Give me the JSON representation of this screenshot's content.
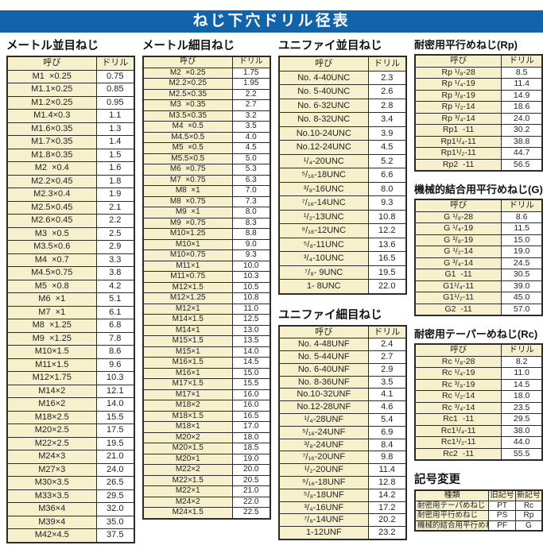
{
  "title": "ねじ下穴ドリル径表",
  "colors": {
    "header_bar": "#1164aa",
    "cell_cream": "#f6f0cd",
    "border": "#2b2b2b",
    "text": "#222222"
  },
  "col_headers": {
    "name": "呼び",
    "drill": "ドリル"
  },
  "tables": {
    "metric_coarse": {
      "title": "メートル並目ねじ",
      "rows": [
        [
          "M1  ×0.25",
          "0.75"
        ],
        [
          "M1.1×0.25",
          "0.85"
        ],
        [
          "M1.2×0.25",
          "0.95"
        ],
        [
          "M1.4×0.3",
          "1.1"
        ],
        [
          "M1.6×0.35",
          "1.3"
        ],
        [
          "M1.7×0.35",
          "1.4"
        ],
        [
          "M1.8×0.35",
          "1.5"
        ],
        [
          "M2  ×0.4",
          "1.6"
        ],
        [
          "M2.2×0.45",
          "1.8"
        ],
        [
          "M2.3×0.4",
          "1.9"
        ],
        [
          "M2.5×0.45",
          "2.1"
        ],
        [
          "M2.6×0.45",
          "2.2"
        ],
        [
          "M3  ×0.5",
          "2.5"
        ],
        [
          "M3.5×0.6",
          "2.9"
        ],
        [
          "M4  ×0.7",
          "3.3"
        ],
        [
          "M4.5×0.75",
          "3.8"
        ],
        [
          "M5  ×0.8",
          "4.2"
        ],
        [
          "M6  ×1",
          "5.1"
        ],
        [
          "M7  ×1",
          "6.1"
        ],
        [
          "M8  ×1.25",
          "6.8"
        ],
        [
          "M9  ×1.25",
          "7.8"
        ],
        [
          "M10×1.5",
          "8.6"
        ],
        [
          "M11×1.5",
          "9.6"
        ],
        [
          "M12×1.75",
          "10.3"
        ],
        [
          "M14×2",
          "12.1"
        ],
        [
          "M16×2",
          "14.0"
        ],
        [
          "M18×2.5",
          "15.5"
        ],
        [
          "M20×2.5",
          "17.5"
        ],
        [
          "M22×2.5",
          "19.5"
        ],
        [
          "M24×3",
          "21.0"
        ],
        [
          "M27×3",
          "24.0"
        ],
        [
          "M30×3.5",
          "26.5"
        ],
        [
          "M33×3.5",
          "29.5"
        ],
        [
          "M36×4",
          "32.0"
        ],
        [
          "M39×4",
          "35.0"
        ],
        [
          "M42×4.5",
          "37.5"
        ]
      ]
    },
    "metric_fine": {
      "title": "メートル細目ねじ",
      "rows": [
        [
          "M2  ×0.25",
          "1.75"
        ],
        [
          "M2.2×0.25",
          "1.95"
        ],
        [
          "M2.5×0.35",
          "2.2"
        ],
        [
          "M3  ×0.35",
          "2.7"
        ],
        [
          "M3.5×0.35",
          "3.2"
        ],
        [
          "M4  ×0.5",
          "3.5"
        ],
        [
          "M4.5×0.5",
          "4.0"
        ],
        [
          "M5  ×0.5",
          "4.5"
        ],
        [
          "M5.5×0.5",
          "5.0"
        ],
        [
          "M6  ×0.75",
          "5.3"
        ],
        [
          "M7  ×0.75",
          "6.3"
        ],
        [
          "M8  ×1",
          "7.0"
        ],
        [
          "M8  ×0.75",
          "7.3"
        ],
        [
          "M9  ×1",
          "8.0"
        ],
        [
          "M9  ×0.75",
          "8.3"
        ],
        [
          "M10×1.25",
          "8.8"
        ],
        [
          "M10×1",
          "9.0"
        ],
        [
          "M10×0.75",
          "9.3"
        ],
        [
          "M11×1",
          "10.0"
        ],
        [
          "M11×0.75",
          "10.3"
        ],
        [
          "M12×1.5",
          "10.5"
        ],
        [
          "M12×1.25",
          "10.8"
        ],
        [
          "M12×1",
          "11.0"
        ],
        [
          "M14×1.5",
          "12.5"
        ],
        [
          "M14×1",
          "13.0"
        ],
        [
          "M15×1.5",
          "13.5"
        ],
        [
          "M15×1",
          "14.0"
        ],
        [
          "M16×1.5",
          "14.5"
        ],
        [
          "M16×1",
          "15.0"
        ],
        [
          "M17×1.5",
          "15.5"
        ],
        [
          "M17×1",
          "16.0"
        ],
        [
          "M18×2",
          "16.0"
        ],
        [
          "M18×1.5",
          "16.5"
        ],
        [
          "M18×1",
          "17.0"
        ],
        [
          "M20×2",
          "18.0"
        ],
        [
          "M20×1.5",
          "18.5"
        ],
        [
          "M20×1",
          "19.0"
        ],
        [
          "M22×2",
          "20.0"
        ],
        [
          "M22×1.5",
          "20.5"
        ],
        [
          "M22×1",
          "21.0"
        ],
        [
          "M24×2",
          "22.0"
        ],
        [
          "M24×1.5",
          "22.5"
        ]
      ]
    },
    "unified_coarse": {
      "title": "ユニファイ並目ねじ",
      "rows": [
        [
          "No. 4-40UNC",
          "2.3"
        ],
        [
          "No. 5-40UNC",
          "2.6"
        ],
        [
          "No. 6-32UNC",
          "2.8"
        ],
        [
          "No. 8-32UNC",
          "3.4"
        ],
        [
          "No.10-24UNC",
          "3.9"
        ],
        [
          "No.12-24UNC",
          "4.5"
        ],
        [
          "¹/₄-20UNC",
          "5.2"
        ],
        [
          "⁵/₁₆-18UNC",
          "6.6"
        ],
        [
          "³/₈-16UNC",
          "8.0"
        ],
        [
          "⁷/₁₆-14UNC",
          "9.3"
        ],
        [
          "¹/₂-13UNC",
          "10.8"
        ],
        [
          "⁹/₁₆-12UNC",
          "12.2"
        ],
        [
          "⁵/₈-11UNC",
          "13.6"
        ],
        [
          "³/₄-10UNC",
          "16.5"
        ],
        [
          "⁷/₈- 9UNC",
          "19.5"
        ],
        [
          "1- 8UNC",
          "22.0"
        ]
      ]
    },
    "unified_fine": {
      "title": "ユニファイ細目ねじ",
      "rows": [
        [
          "No. 4-48UNF",
          "2.4"
        ],
        [
          "No. 5-44UNF",
          "2.7"
        ],
        [
          "No. 6-40UNF",
          "2.9"
        ],
        [
          "No. 8-36UNF",
          "3.5"
        ],
        [
          "No.10-32UNF",
          "4.1"
        ],
        [
          "No.12-28UNF",
          "4.6"
        ],
        [
          "¹/₄-28UNF",
          "5.4"
        ],
        [
          "⁵/₁₆-24UNF",
          "6.9"
        ],
        [
          "³/₈-24UNF",
          "8.4"
        ],
        [
          "⁷/₁₆-20UNF",
          "9.8"
        ],
        [
          "¹/₂-20UNF",
          "11.4"
        ],
        [
          "⁹/₁₆-18UNF",
          "12.8"
        ],
        [
          "⁵/₈-18UNF",
          "14.2"
        ],
        [
          "³/₄-16UNF",
          "17.2"
        ],
        [
          "⁷/₈-14UNF",
          "20.2"
        ],
        [
          "1-12UNF",
          "23.2"
        ]
      ]
    },
    "rp": {
      "title": "耐密用平行めねじ(Rp)",
      "rows": [
        [
          "Rp ¹/₈-28",
          "8.5"
        ],
        [
          "Rp ¹/₄-19",
          "11.4"
        ],
        [
          "Rp ³/₈-19",
          "14.9"
        ],
        [
          "Rp ¹/₂-14",
          "18.6"
        ],
        [
          "Rp ³/₄-14",
          "24.0"
        ],
        [
          "Rp1  -11",
          "30.2"
        ],
        [
          "Rp1¹/₄-11",
          "38.8"
        ],
        [
          "Rp1¹/₂-11",
          "44.7"
        ],
        [
          "Rp2  -11",
          "56.5"
        ]
      ]
    },
    "g": {
      "title": "機械的結合用平行めねじ(G)",
      "rows": [
        [
          "G ¹/₈-28",
          "8.6"
        ],
        [
          "G ¹/₄-19",
          "11.5"
        ],
        [
          "G ³/₈-19",
          "15.0"
        ],
        [
          "G ¹/₂-14",
          "19.0"
        ],
        [
          "G ³/₄-14",
          "24.5"
        ],
        [
          "G1  -11",
          "30.5"
        ],
        [
          "G1¹/₄-11",
          "39.0"
        ],
        [
          "G1¹/₂-11",
          "45.0"
        ],
        [
          "G2  -11",
          "57.0"
        ]
      ]
    },
    "rc": {
      "title": "耐密用テーパーめねじ(Rc)",
      "rows": [
        [
          "Rc ¹/₈-28",
          "8.2"
        ],
        [
          "Rc ¹/₄-19",
          "11.0"
        ],
        [
          "Rc ³/₈-19",
          "14.5"
        ],
        [
          "Rc ¹/₂-14",
          "18.0"
        ],
        [
          "Rc ³/₄-14",
          "23.5"
        ],
        [
          "Rc1  -11",
          "29.5"
        ],
        [
          "Rc1¹/₄-11",
          "38.0"
        ],
        [
          "Rc1¹/₂-11",
          "44.0"
        ],
        [
          "Rc2  -11",
          "55.5"
        ]
      ]
    },
    "symbol_change": {
      "title": "記号変更",
      "headers": [
        "種類",
        "旧記号",
        "新記号"
      ],
      "rows": [
        [
          "耐密用テーパめねじ",
          "PT",
          "Rc"
        ],
        [
          "耐密用平行めねじ",
          "PS",
          "Rp"
        ],
        [
          "機械的結合用平行めねじ",
          "PF",
          "G"
        ]
      ]
    }
  }
}
